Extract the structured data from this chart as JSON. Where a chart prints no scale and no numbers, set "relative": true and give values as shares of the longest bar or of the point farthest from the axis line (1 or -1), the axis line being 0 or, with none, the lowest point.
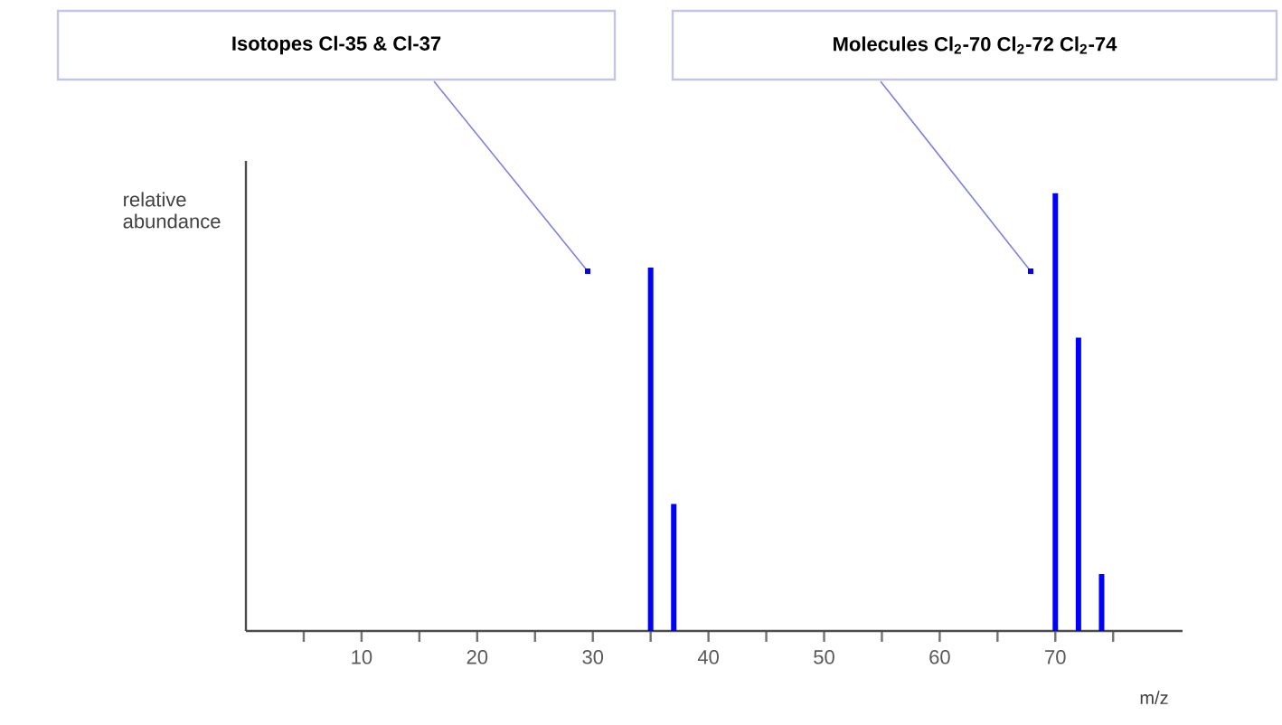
{
  "chart_data": {
    "type": "bar",
    "relative": true,
    "xlabel": "m/z",
    "ylabel": "relative abundance",
    "x": [
      35,
      37,
      70,
      72,
      74
    ],
    "values": [
      0.83,
      0.29,
      1,
      0.67,
      0.13
    ],
    "color": "#0000ff",
    "xlim": [
      0,
      81
    ],
    "xticks": [
      {
        "value": 5,
        "label": null
      },
      10,
      {
        "value": 15,
        "label": null
      },
      20,
      {
        "value": 25,
        "label": null
      },
      30,
      {
        "value": 35,
        "label": null
      },
      40,
      {
        "value": 45,
        "label": null
      },
      50,
      {
        "value": 55,
        "label": null
      },
      60,
      {
        "value": 65,
        "label": null
      },
      70,
      {
        "value": 75,
        "label": null
      }
    ],
    "annotations": [
      "Isotopes Cl-35 & Cl-37",
      "Molecules Cl$_{2}$-70 Cl$_{2}$-72 Cl$_{2}$-74"
    ]
  }
}
